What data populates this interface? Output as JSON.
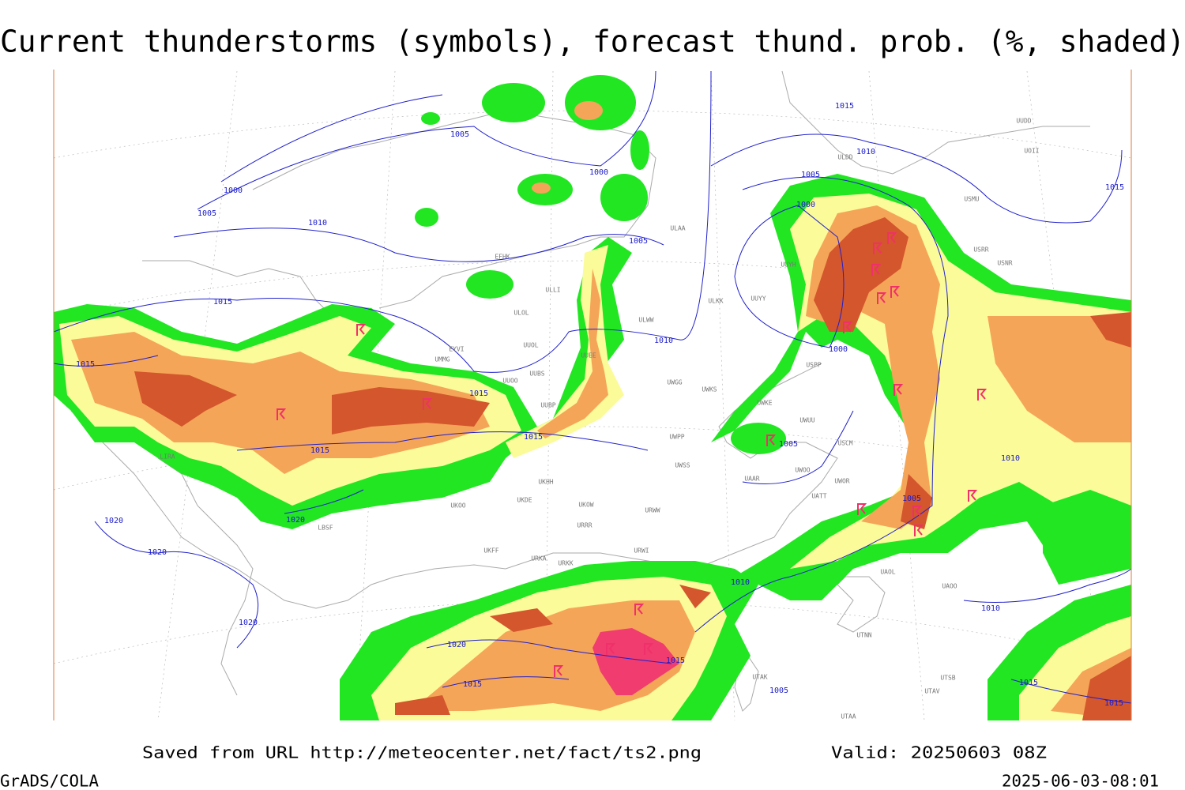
{
  "title": "Current thunderstorms (symbols), forecast thund. prob. (%, shaded)",
  "footer": {
    "saved_from": "Saved from URL http://meteocenter.net/fact/ts2.png",
    "valid": "Valid: 20250603 08Z",
    "software": "GrADS/COLA",
    "timestamp": "2025-06-03-08:01"
  },
  "isobar_labels": [
    "1005",
    "1015",
    "1010",
    "1005",
    "1000",
    "1000",
    "1005",
    "1010",
    "1005",
    "1015",
    "1000",
    "1015",
    "1010",
    "1000",
    "1015",
    "1015",
    "1015",
    "1005",
    "1010",
    "1005",
    "1020",
    "1020",
    "1020",
    "1010",
    "1010",
    "1020",
    "1020",
    "1015",
    "1015",
    "1015",
    "1005",
    "1015",
    "1015"
  ],
  "stations": [
    "ULAA",
    "EFHK",
    "ULLI",
    "ULOL",
    "ULKK",
    "UUYY",
    "UUYH",
    "ULWW",
    "UUOL",
    "UMMG",
    "EYVI",
    "UUBS",
    "UUEE",
    "UWGG",
    "UWKS",
    "UUOO",
    "UUBP",
    "UWKE",
    "UWUU",
    "UWPP",
    "USCM",
    "UWSS",
    "UAAR",
    "UWOO",
    "UWOR",
    "UATT",
    "UKHH",
    "UKDE",
    "UKOW",
    "UKOO",
    "URWW",
    "URRR",
    "UKFF",
    "URKA",
    "URKK",
    "URWI",
    "UAOL",
    "UAOO",
    "UTNN",
    "UTAK",
    "UTAV",
    "UTAA",
    "UTSB",
    "LBSF",
    "LIRA",
    "UUDD",
    "UOII",
    "USMU",
    "USRR",
    "USNR",
    "ULDD",
    "USPP"
  ]
}
